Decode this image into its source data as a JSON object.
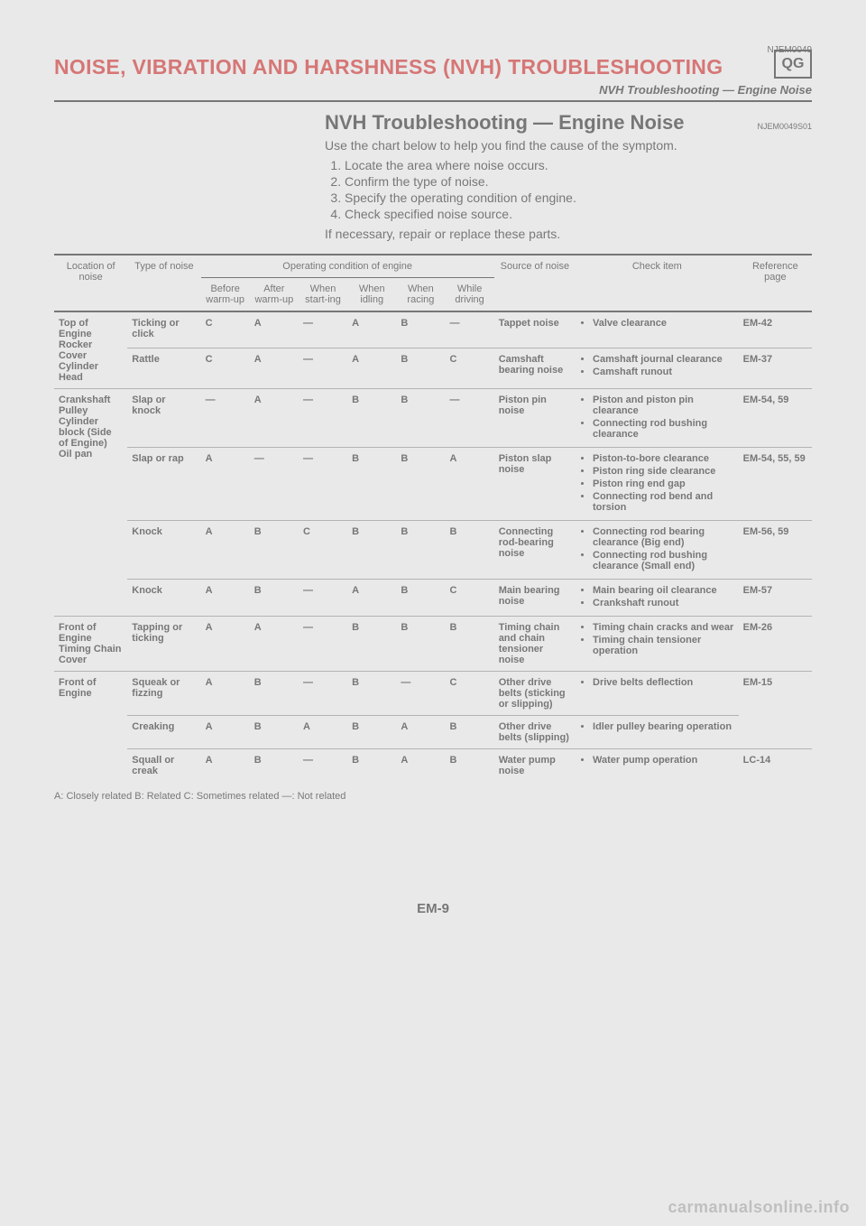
{
  "header": {
    "note_code": "NJEM0049",
    "main_title": "NOISE, VIBRATION AND HARSHNESS (NVH) TROUBLESHOOTING",
    "qg_label": "QG",
    "subtitle": "NVH Troubleshooting — Engine Noise"
  },
  "intro": {
    "heading": "NVH Troubleshooting — Engine Noise",
    "heading_code": "NJEM0049S01",
    "text": "Use the chart below to help you find the cause of the symptom.",
    "steps": [
      "Locate the area where noise occurs.",
      "Confirm the type of noise.",
      "Specify the operating condition of engine.",
      "Check specified noise source."
    ],
    "closing": "If necessary, repair or replace these parts."
  },
  "table": {
    "head": {
      "location": "Location of noise",
      "type": "Type of noise",
      "operating": "Operating condition of engine",
      "before": "Before warm-up",
      "after": "After warm-up",
      "starting": "When start-ing",
      "idling": "When idling",
      "racing": "When racing",
      "driving": "While driving",
      "source": "Source of noise",
      "check": "Check item",
      "reference": "Reference page"
    },
    "rows": [
      {
        "location": "Top of Engine Rocker Cover Cylinder Head",
        "loc_rowspan": 2,
        "type": "Ticking or click",
        "cond": [
          "C",
          "A",
          "—",
          "A",
          "B",
          "—"
        ],
        "source": "Tappet noise",
        "check": [
          "Valve clearance"
        ],
        "ref": "EM-42"
      },
      {
        "type": "Rattle",
        "cond": [
          "C",
          "A",
          "—",
          "A",
          "B",
          "C"
        ],
        "source": "Camshaft bearing noise",
        "check": [
          "Camshaft journal clearance",
          "Camshaft runout"
        ],
        "ref": "EM-37"
      },
      {
        "location": "Crankshaft Pulley Cylinder block (Side of Engine) Oil pan",
        "loc_rowspan": 4,
        "type": "Slap or knock",
        "cond": [
          "—",
          "A",
          "—",
          "B",
          "B",
          "—"
        ],
        "source": "Piston pin noise",
        "check": [
          "Piston and piston pin clearance",
          "Connecting rod bushing clearance"
        ],
        "ref": "EM-54, 59"
      },
      {
        "type": "Slap or rap",
        "cond": [
          "A",
          "—",
          "—",
          "B",
          "B",
          "A"
        ],
        "source": "Piston slap noise",
        "check": [
          "Piston-to-bore clearance",
          "Piston ring side clearance",
          "Piston ring end gap",
          "Connecting rod bend and torsion"
        ],
        "ref": "EM-54, 55, 59"
      },
      {
        "type": "Knock",
        "cond": [
          "A",
          "B",
          "C",
          "B",
          "B",
          "B"
        ],
        "source": "Connecting rod-bearing noise",
        "check": [
          "Connecting rod bearing clearance (Big end)",
          "Connecting rod bushing clearance (Small end)"
        ],
        "ref": "EM-56, 59"
      },
      {
        "type": "Knock",
        "cond": [
          "A",
          "B",
          "—",
          "A",
          "B",
          "C"
        ],
        "source": "Main bearing noise",
        "check": [
          "Main bearing oil clearance",
          "Crankshaft runout"
        ],
        "ref": "EM-57"
      },
      {
        "location": "Front of Engine Timing Chain Cover",
        "loc_rowspan": 1,
        "type": "Tapping or ticking",
        "cond": [
          "A",
          "A",
          "—",
          "B",
          "B",
          "B"
        ],
        "source": "Timing chain and chain tensioner noise",
        "check": [
          "Timing chain cracks and wear",
          "Timing chain tensioner operation"
        ],
        "ref": "EM-26"
      },
      {
        "location": "Front of Engine",
        "loc_rowspan": 3,
        "type": "Squeak or fizzing",
        "cond": [
          "A",
          "B",
          "—",
          "B",
          "—",
          "C"
        ],
        "source": "Other drive belts (sticking or slipping)",
        "check": [
          "Drive belts deflection"
        ],
        "ref": "EM-15",
        "ref_rowspan": 2
      },
      {
        "type": "Creaking",
        "cond": [
          "A",
          "B",
          "A",
          "B",
          "A",
          "B"
        ],
        "source": "Other drive belts (slipping)",
        "check": [
          "Idler pulley bearing operation"
        ]
      },
      {
        "type": "Squall or creak",
        "cond": [
          "A",
          "B",
          "—",
          "B",
          "A",
          "B"
        ],
        "source": "Water pump noise",
        "check": [
          "Water pump operation"
        ],
        "ref": "LC-14"
      }
    ]
  },
  "legend": "A: Closely related    B: Related    C: Sometimes related    —: Not related",
  "page_number": "EM-9",
  "watermark": "carmanualsonline.info"
}
